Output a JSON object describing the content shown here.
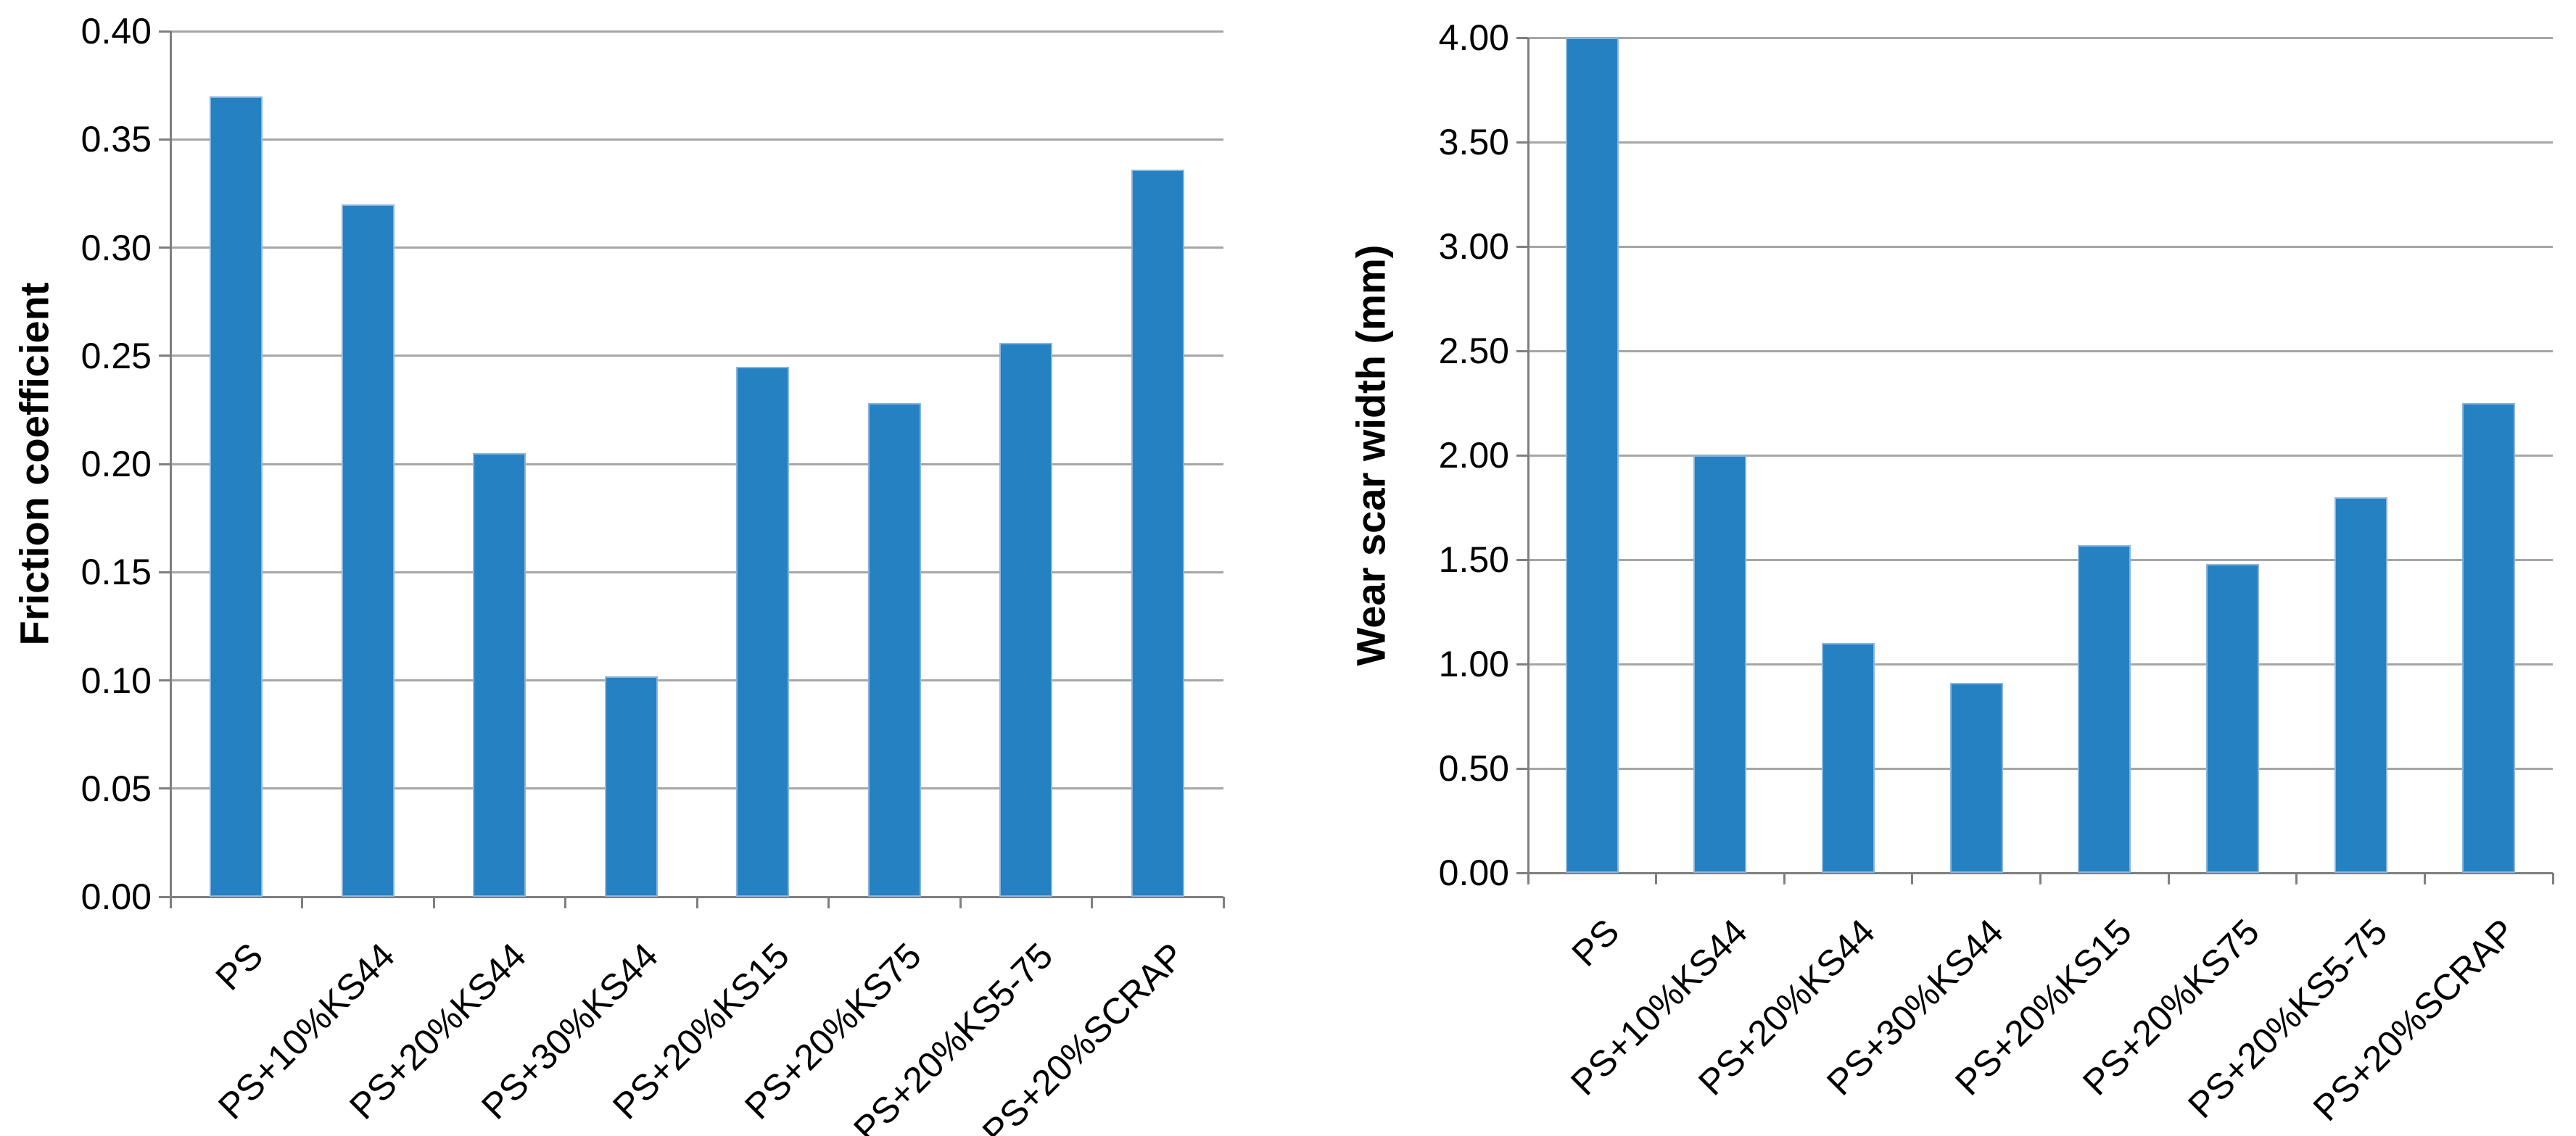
{
  "figure": {
    "background": "#FFFFFF",
    "left_axis_title": "Friction coefficient",
    "right_axis_title": "Wear scar width (mm)"
  },
  "colors": {
    "bar_fill": "#2581C1",
    "bar_edge": "#8AB5DE",
    "gridline": "#A6A6A6",
    "axis": "#7F7F7F",
    "text": "#000000",
    "background": "#FFFFFF"
  },
  "chart_data": [
    {
      "type": "bar",
      "title": "",
      "xlabel": "",
      "ylabel": "Friction coefficient",
      "categories": [
        "PS",
        "PS+10%KS44",
        "PS+20%KS44",
        "PS+30%KS44",
        "PS+20%KS15",
        "PS+20%KS75",
        "PS+20%KS5-75",
        "PS+20%SCRAP"
      ],
      "values": [
        0.37,
        0.32,
        0.205,
        0.102,
        0.245,
        0.228,
        0.256,
        0.336
      ],
      "ylim": [
        0.0,
        0.4
      ],
      "ytick_step": 0.05,
      "ytick_labels": [
        "0.40",
        "0.35",
        "0.30",
        "0.25",
        "0.20",
        "0.15",
        "0.10",
        "0.05",
        "0.00"
      ],
      "grid": true,
      "legend": null
    },
    {
      "type": "bar",
      "title": "",
      "xlabel": "",
      "ylabel": "Wear scar width (mm)",
      "categories": [
        "PS",
        "PS+10%KS44",
        "PS+20%KS44",
        "PS+30%KS44",
        "PS+20%KS15",
        "PS+20%KS75",
        "PS+20%KS5-75",
        "PS+20%SCRAP"
      ],
      "values": [
        4.0,
        2.0,
        1.1,
        0.91,
        1.57,
        1.48,
        1.8,
        2.25
      ],
      "ylim": [
        0.0,
        4.0
      ],
      "ytick_step": 0.5,
      "ytick_labels": [
        "4.00",
        "3.50",
        "3.00",
        "2.50",
        "2.00",
        "1.50",
        "1.00",
        "0.50",
        "0.00"
      ],
      "grid": true,
      "legend": null
    }
  ]
}
